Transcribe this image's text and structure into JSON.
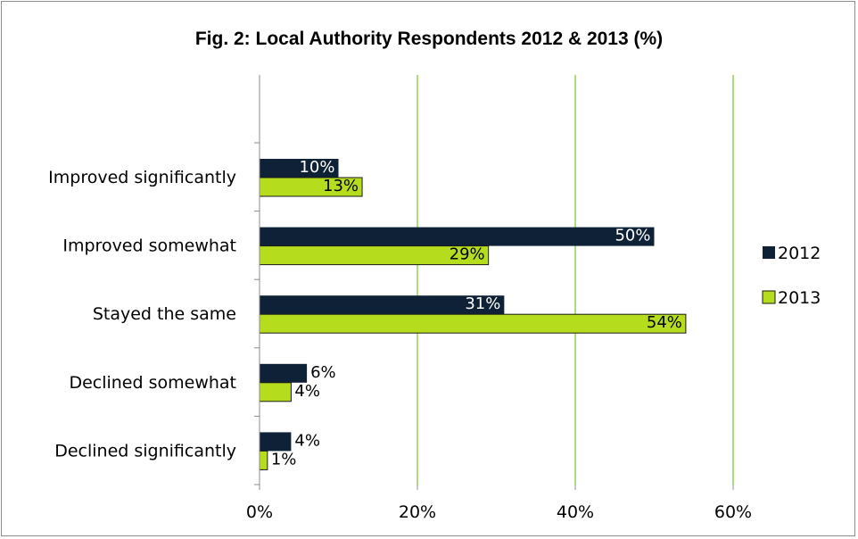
{
  "chart_data": {
    "type": "bar",
    "orientation": "horizontal",
    "title": "Fig. 2: Local Authority Respondents 2012 & 2013 (%)",
    "xlabel": "",
    "ylabel": "",
    "categories": [
      "Improved significantly",
      "Improved somewhat",
      "Stayed the same",
      "Declined somewhat",
      "Declined significantly"
    ],
    "series": [
      {
        "name": "2012",
        "color": "#0f2137",
        "values": [
          10,
          50,
          31,
          6,
          4
        ],
        "labels": [
          "10%",
          "50%",
          "31%",
          "6%",
          "4%"
        ]
      },
      {
        "name": "2013",
        "color": "#b6dd1d",
        "values": [
          13,
          29,
          54,
          4,
          1
        ],
        "labels": [
          "13%",
          "29%",
          "54%",
          "4%",
          "1%"
        ]
      }
    ],
    "xlim": [
      0,
      60
    ],
    "xticks": [
      0,
      20,
      40,
      60
    ],
    "xtick_labels": [
      "0%",
      "20%",
      "40%",
      "60%"
    ],
    "grid": "vertical",
    "grid_color": "#92d050",
    "legend": "right"
  }
}
